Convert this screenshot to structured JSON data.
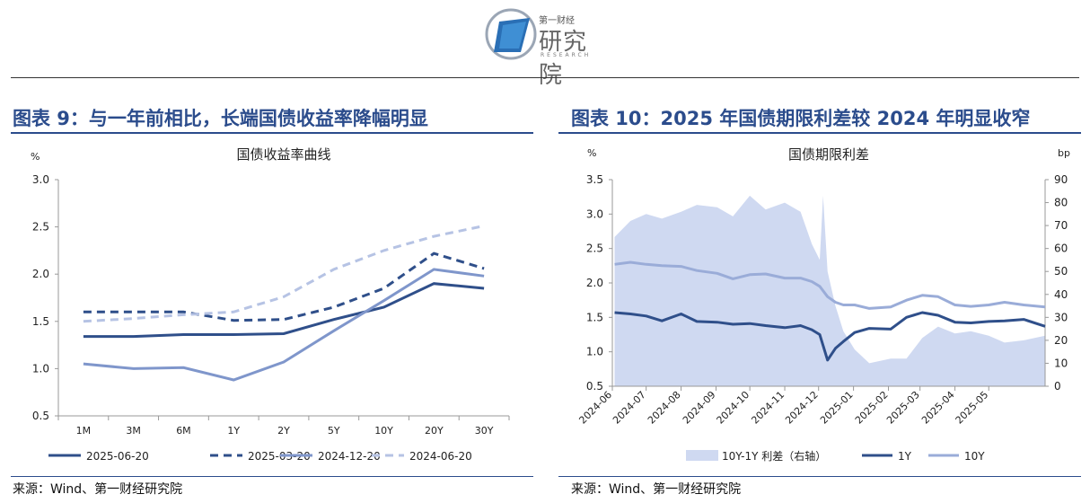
{
  "header": {
    "brand_small": "第一财经",
    "brand_big": "研究院",
    "brand_en": "RESEARCH"
  },
  "left": {
    "panel_title": "图表 9：与一年前相比，长端国债收益率降幅明显",
    "source": "来源：Wind、第一财经研究院"
  },
  "right": {
    "panel_title": "图表 10：2025 年国债期限利差较 2024 年明显收窄",
    "source": "来源：Wind、第一财经研究院"
  },
  "colors": {
    "dark_blue": "#2f4f8a",
    "mid_blue": "#7f96cb",
    "light_blue": "#b6c3e4",
    "area": "#cfd9f1",
    "title": "#2b4c8c"
  },
  "chart_data": [
    {
      "type": "line",
      "title": "国债收益率曲线",
      "ylabel": "%",
      "ylim": [
        0.5,
        3.0
      ],
      "yticks": [
        "3.0",
        "2.5",
        "2.0",
        "1.5",
        "1.0",
        "0.5"
      ],
      "categories": [
        "1M",
        "3M",
        "6M",
        "1Y",
        "2Y",
        "5Y",
        "10Y",
        "20Y",
        "30Y"
      ],
      "legend_position": "bottom",
      "series": [
        {
          "name": "2025-06-20",
          "style": "solid",
          "color": "#2f4f8a",
          "values": [
            1.34,
            1.34,
            1.36,
            1.36,
            1.37,
            1.52,
            1.65,
            1.9,
            1.85
          ]
        },
        {
          "name": "2025-03-20",
          "style": "dashed",
          "color": "#2f4f8a",
          "values": [
            1.6,
            1.6,
            1.6,
            1.51,
            1.52,
            1.65,
            1.85,
            2.22,
            2.06
          ]
        },
        {
          "name": "2024-12-20",
          "style": "solid",
          "color": "#7f96cb",
          "values": [
            1.05,
            1.0,
            1.01,
            0.88,
            1.07,
            1.4,
            1.72,
            2.05,
            1.98
          ]
        },
        {
          "name": "2024-06-20",
          "style": "dashed",
          "color": "#b6c3e4",
          "values": [
            1.5,
            1.53,
            1.57,
            1.6,
            1.76,
            2.05,
            2.25,
            2.4,
            2.51
          ]
        }
      ]
    },
    {
      "type": "line",
      "title": "国债期限利差",
      "ylabel": "%",
      "y2label": "bp",
      "ylim": [
        0.5,
        3.5
      ],
      "y2lim": [
        0,
        90
      ],
      "yticks": [
        "3.5",
        "3.0",
        "2.5",
        "2.0",
        "1.5",
        "1.0",
        "0.5"
      ],
      "y2ticks": [
        "90",
        "80",
        "70",
        "60",
        "50",
        "40",
        "30",
        "20",
        "10",
        "0"
      ],
      "xticks": [
        "2024-06",
        "2024-07",
        "2024-08",
        "2024-09",
        "2024-10",
        "2024-11",
        "2024-12",
        "2025-01",
        "2025-02",
        "2025-03",
        "2025-04",
        "2025-05"
      ],
      "legend_position": "bottom",
      "series": [
        {
          "name": "10Y-1Y 利差（右轴）",
          "axis": "right",
          "style": "area",
          "color": "#cfd9f1",
          "x": [
            "2024-06-03",
            "2024-06-17",
            "2024-07-01",
            "2024-07-15",
            "2024-08-01",
            "2024-08-15",
            "2024-09-02",
            "2024-09-16",
            "2024-10-01",
            "2024-10-15",
            "2024-11-01",
            "2024-11-15",
            "2024-11-25",
            "2024-12-02",
            "2024-12-05",
            "2024-12-09",
            "2024-12-16",
            "2024-12-23",
            "2025-01-02",
            "2025-01-15",
            "2025-02-03",
            "2025-02-17",
            "2025-03-03",
            "2025-03-17",
            "2025-04-01",
            "2025-04-15",
            "2025-05-01",
            "2025-05-15",
            "2025-06-01",
            "2025-06-20"
          ],
          "values": [
            65,
            72,
            75,
            73,
            76,
            79,
            78,
            74,
            83,
            77,
            80,
            76,
            62,
            55,
            83,
            50,
            35,
            24,
            16,
            10,
            12,
            12,
            21,
            26,
            23,
            24,
            22,
            19,
            20,
            22
          ]
        },
        {
          "name": "1Y",
          "axis": "left",
          "style": "solid",
          "color": "#2f4f8a",
          "x": [
            "2024-06-03",
            "2024-06-17",
            "2024-07-01",
            "2024-07-15",
            "2024-08-01",
            "2024-08-15",
            "2024-09-02",
            "2024-09-16",
            "2024-10-01",
            "2024-10-15",
            "2024-11-01",
            "2024-11-15",
            "2024-11-25",
            "2024-12-02",
            "2024-12-09",
            "2024-12-16",
            "2024-12-23",
            "2025-01-02",
            "2025-01-15",
            "2025-02-03",
            "2025-02-17",
            "2025-03-03",
            "2025-03-17",
            "2025-04-01",
            "2025-04-15",
            "2025-05-01",
            "2025-05-15",
            "2025-06-01",
            "2025-06-20"
          ],
          "values": [
            1.57,
            1.55,
            1.52,
            1.45,
            1.55,
            1.44,
            1.43,
            1.4,
            1.41,
            1.38,
            1.35,
            1.38,
            1.32,
            1.25,
            0.88,
            1.05,
            1.15,
            1.28,
            1.34,
            1.33,
            1.5,
            1.57,
            1.53,
            1.43,
            1.42,
            1.44,
            1.45,
            1.47,
            1.37
          ]
        },
        {
          "name": "10Y",
          "axis": "left",
          "style": "solid",
          "color": "#9aacd8",
          "x": [
            "2024-06-03",
            "2024-06-17",
            "2024-07-01",
            "2024-07-15",
            "2024-08-01",
            "2024-08-15",
            "2024-09-02",
            "2024-09-16",
            "2024-10-01",
            "2024-10-15",
            "2024-11-01",
            "2024-11-15",
            "2024-11-25",
            "2024-12-02",
            "2024-12-09",
            "2024-12-16",
            "2024-12-23",
            "2025-01-02",
            "2025-01-15",
            "2025-02-03",
            "2025-02-17",
            "2025-03-03",
            "2025-03-17",
            "2025-04-01",
            "2025-04-15",
            "2025-05-01",
            "2025-05-15",
            "2025-06-01",
            "2025-06-20"
          ],
          "values": [
            2.27,
            2.3,
            2.27,
            2.25,
            2.24,
            2.18,
            2.14,
            2.06,
            2.12,
            2.13,
            2.07,
            2.07,
            2.02,
            1.95,
            1.8,
            1.72,
            1.68,
            1.68,
            1.63,
            1.65,
            1.75,
            1.82,
            1.8,
            1.68,
            1.66,
            1.68,
            1.72,
            1.68,
            1.65
          ]
        }
      ]
    }
  ]
}
